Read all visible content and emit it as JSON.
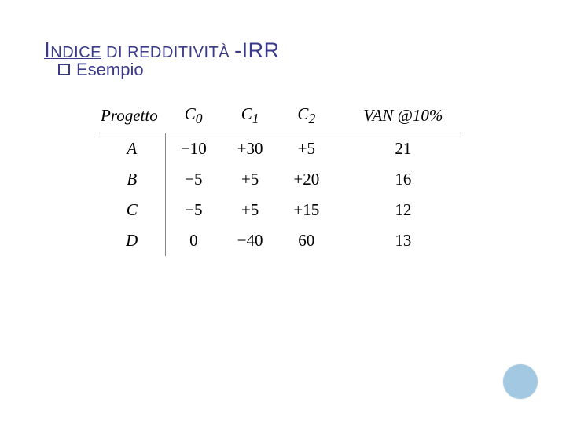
{
  "title": {
    "prefix_big": "I",
    "prefix_small": "NDICE",
    "mid_small": " DI REDDITIVITÀ ",
    "suffix": "-IRR"
  },
  "subtitle": "Esempio",
  "table": {
    "headers": [
      "Progetto",
      "C",
      "C",
      "C",
      "VAN @10%"
    ],
    "header_subs": [
      "",
      "0",
      "1",
      "2",
      ""
    ],
    "rows": [
      {
        "label": "A",
        "c0": "−10",
        "c1": "+30",
        "c2": "+5",
        "van": "21"
      },
      {
        "label": "B",
        "c0": "−5",
        "c1": "+5",
        "c2": "+20",
        "van": "16"
      },
      {
        "label": "C",
        "c0": "−5",
        "c1": "+5",
        "c2": "+15",
        "van": "12"
      },
      {
        "label": "D",
        "c0": "0",
        "c1": "−40",
        "c2": "60",
        "van": "13"
      }
    ]
  },
  "colors": {
    "title": "#3a3a8a",
    "dot": "#a3c9e2",
    "border": "#888888",
    "bg": "#ffffff"
  }
}
